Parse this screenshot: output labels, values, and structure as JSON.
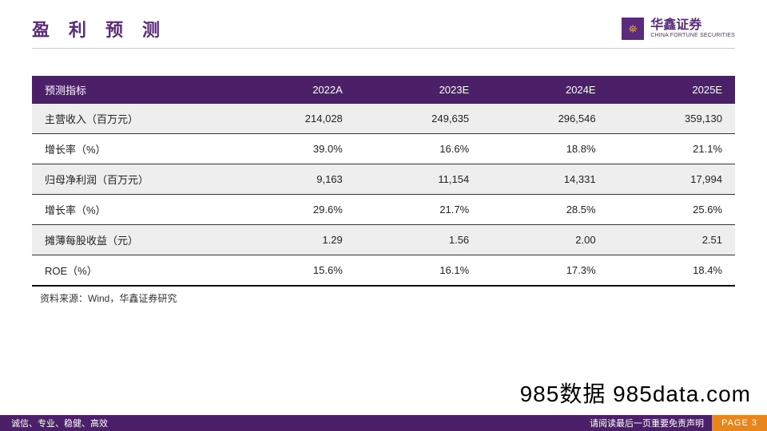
{
  "header": {
    "title": "盈利预测",
    "logo": {
      "icon_glyph": "⛯",
      "cn": "华鑫证券",
      "en": "CHINA FORTUNE SECURITIES"
    }
  },
  "table": {
    "columns": [
      "预测指标",
      "2022A",
      "2023E",
      "2024E",
      "2025E"
    ],
    "rows": [
      {
        "shade": true,
        "cells": [
          "主营收入（百万元）",
          "214,028",
          "249,635",
          "296,546",
          "359,130"
        ]
      },
      {
        "shade": false,
        "cells": [
          "增长率（%）",
          "39.0%",
          "16.6%",
          "18.8%",
          "21.1%"
        ]
      },
      {
        "shade": true,
        "cells": [
          "归母净利润（百万元）",
          "9,163",
          "11,154",
          "14,331",
          "17,994"
        ]
      },
      {
        "shade": false,
        "cells": [
          "增长率（%）",
          "29.6%",
          "21.7%",
          "28.5%",
          "25.6%"
        ]
      },
      {
        "shade": true,
        "cells": [
          "摊薄每股收益（元）",
          "1.29",
          "1.56",
          "2.00",
          "2.51"
        ]
      },
      {
        "shade": false,
        "cells": [
          "ROE（%）",
          "15.6%",
          "16.1%",
          "17.3%",
          "18.4%"
        ]
      }
    ],
    "col_widths": [
      "28%",
      "18%",
      "18%",
      "18%",
      "18%"
    ],
    "header_bg": "#4b2068",
    "header_fg": "#ffffff",
    "row_shade_bg": "#eeeeee",
    "border_color": "#333333"
  },
  "source": "资料来源：Wind，华鑫证券研究",
  "watermark": "985数据 985data.com",
  "footer": {
    "left": "诚信、专业、稳健、高效",
    "disclaimer": "请阅读最后一页重要免责声明",
    "page_label": "PAGE 3"
  }
}
